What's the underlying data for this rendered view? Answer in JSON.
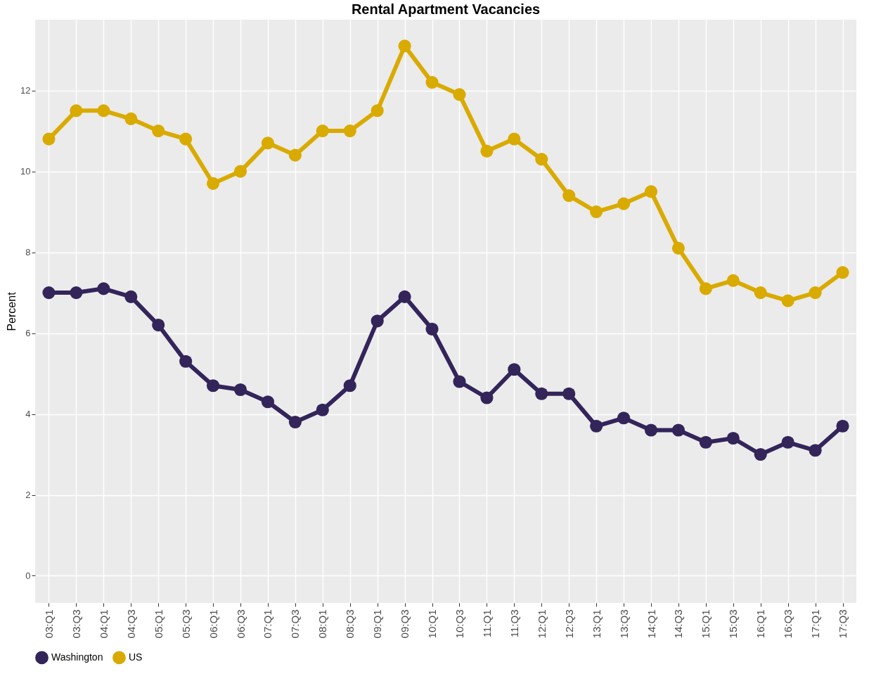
{
  "chart_data": {
    "type": "line",
    "title": "Rental Apartment Vacancies",
    "ylabel": "Percent",
    "categories": [
      "03:Q1",
      "03:Q3",
      "04:Q1",
      "04:Q3",
      "05:Q1",
      "05:Q3",
      "06:Q1",
      "06:Q3",
      "07:Q1",
      "07:Q3",
      "08:Q1",
      "08:Q3",
      "09:Q1",
      "09:Q3",
      "10:Q1",
      "10:Q3",
      "11:Q1",
      "11:Q3",
      "12:Q1",
      "12:Q3",
      "13:Q1",
      "13:Q3",
      "14:Q1",
      "14:Q3",
      "15:Q1",
      "15:Q3",
      "16:Q1",
      "16:Q3",
      "17:Q1",
      "17:Q3"
    ],
    "series": [
      {
        "name": "Washington",
        "color": "#33245a",
        "values": [
          7.0,
          7.0,
          7.1,
          6.9,
          6.2,
          5.3,
          4.7,
          4.6,
          4.3,
          3.8,
          4.1,
          4.7,
          6.3,
          6.9,
          6.1,
          4.8,
          4.4,
          5.1,
          4.5,
          4.5,
          3.7,
          3.9,
          3.6,
          3.6,
          3.3,
          3.4,
          3.0,
          3.3,
          3.1,
          3.7
        ]
      },
      {
        "name": "US",
        "color": "#d9aa00",
        "values": [
          10.8,
          11.5,
          11.5,
          11.3,
          11.0,
          10.8,
          9.7,
          10.0,
          10.7,
          10.4,
          11.0,
          11.0,
          11.5,
          13.1,
          12.2,
          11.9,
          10.5,
          10.8,
          10.3,
          9.4,
          9.0,
          9.2,
          9.5,
          8.1,
          7.1,
          7.3,
          7.0,
          6.8,
          7.0,
          7.5
        ]
      }
    ],
    "ylim": [
      -0.67,
      13.75
    ],
    "yticks": [
      0,
      2,
      4,
      6,
      8,
      10,
      12
    ],
    "grid": true,
    "legend": "bottom",
    "marker": "circle",
    "line_style": "solid"
  }
}
